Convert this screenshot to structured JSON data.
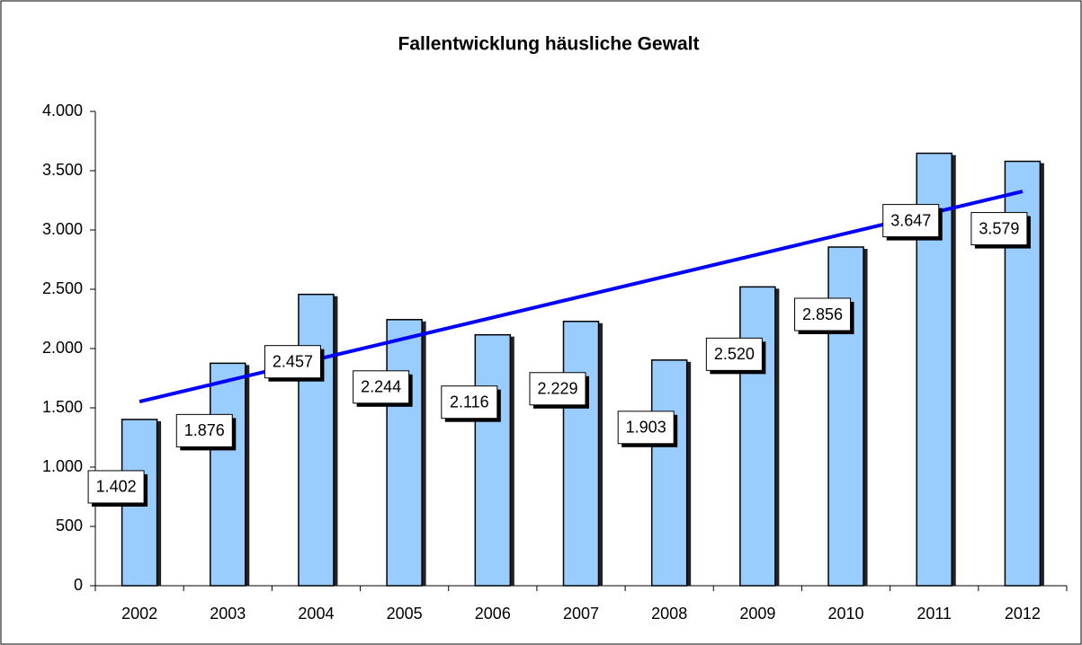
{
  "chart_data": {
    "type": "bar",
    "title": "Fallentwicklung häusliche Gewalt",
    "categories": [
      "2002",
      "2003",
      "2004",
      "2005",
      "2006",
      "2007",
      "2008",
      "2009",
      "2010",
      "2011",
      "2012"
    ],
    "values": [
      1402,
      1876,
      2457,
      2244,
      2116,
      2229,
      1903,
      2520,
      2856,
      3647,
      3579
    ],
    "value_labels": [
      "1.402",
      "1.876",
      "2.457",
      "2.244",
      "2.116",
      "2.229",
      "1.903",
      "2.520",
      "2.856",
      "3.647",
      "3.579"
    ],
    "color": "#99ccff",
    "trendline": {
      "kind": "linear",
      "color": "#0000ff"
    },
    "ylim": [
      0,
      4000
    ],
    "yticks": [
      0,
      500,
      {
        "value": 1000,
        "label": "1.000"
      },
      {
        "value": 1500,
        "label": "1.500"
      },
      {
        "value": 2000,
        "label": "2.000"
      },
      {
        "value": 2500,
        "label": "2.500"
      },
      {
        "value": 3000,
        "label": "3.000"
      },
      {
        "value": 3500,
        "label": "3.500"
      },
      {
        "value": 4000,
        "label": "4.000"
      }
    ],
    "grid": false
  }
}
